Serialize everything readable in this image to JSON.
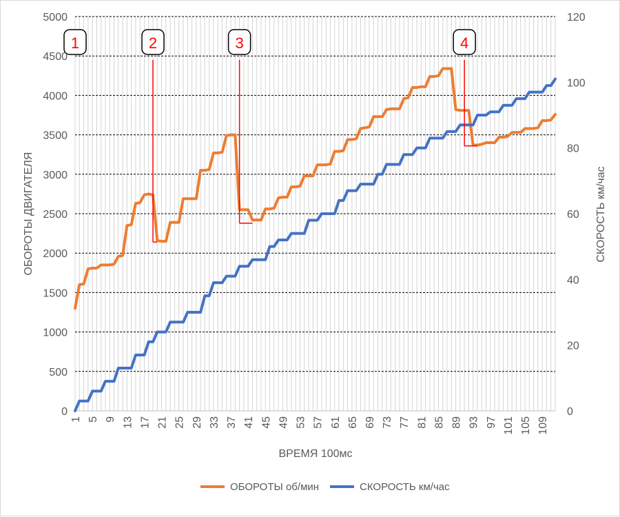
{
  "chart_data": {
    "type": "line",
    "xlabel": "ВРЕМЯ 100мс",
    "ylabel": "ОБОРОТЫ ДВИГАТЕЛЯ",
    "y2label": "СКОРОСТЬ км/час",
    "xlim": [
      1,
      112
    ],
    "ylim": [
      0,
      5000
    ],
    "y2lim": [
      0,
      120
    ],
    "x_ticks": [
      1,
      5,
      9,
      13,
      17,
      21,
      25,
      29,
      33,
      37,
      41,
      45,
      49,
      53,
      57,
      61,
      65,
      69,
      73,
      77,
      81,
      85,
      89,
      93,
      97,
      101,
      105,
      109
    ],
    "x_tick_labels": [
      "1",
      "5",
      "9",
      "13",
      "17",
      "21",
      "25",
      "29",
      "33",
      "37",
      "41",
      "45",
      "49",
      "53",
      "57",
      "61",
      "65",
      "69",
      "73",
      "77",
      "81",
      "85",
      "89",
      "93",
      "97",
      "101",
      "105",
      "109"
    ],
    "y_ticks": [
      0,
      500,
      1000,
      1500,
      2000,
      2500,
      3000,
      3500,
      4000,
      4500,
      5000
    ],
    "y_tick_labels": [
      "0",
      "500",
      "1000",
      "1500",
      "2000",
      "2500",
      "3000",
      "3500",
      "4000",
      "4500",
      "5000"
    ],
    "y2_ticks": [
      0,
      20,
      40,
      60,
      80,
      100,
      120
    ],
    "y2_tick_labels": [
      "0",
      "20",
      "40",
      "60",
      "80",
      "100",
      "120"
    ],
    "grid": true,
    "legend_position": "bottom",
    "series": [
      {
        "name": "ОБОРОТЫ об/мин",
        "axis": "left",
        "color": "#ed7d31",
        "x": [
          1,
          2,
          3,
          4,
          5,
          6,
          7,
          8,
          9,
          10,
          11,
          12,
          13,
          14,
          15,
          16,
          17,
          18,
          19,
          20,
          21,
          22,
          23,
          24,
          25,
          26,
          27,
          28,
          29,
          30,
          31,
          32,
          33,
          34,
          35,
          36,
          37,
          38,
          39,
          40,
          41,
          42,
          43,
          44,
          45,
          46,
          47,
          48,
          49,
          50,
          51,
          52,
          53,
          54,
          55,
          56,
          57,
          58,
          59,
          60,
          61,
          62,
          63,
          64,
          65,
          66,
          67,
          68,
          69,
          70,
          71,
          72,
          73,
          74,
          75,
          76,
          77,
          78,
          79,
          80,
          81,
          82,
          83,
          84,
          85,
          86,
          87,
          88,
          89,
          90,
          91,
          92,
          93,
          94,
          95,
          96,
          97,
          98,
          99,
          100,
          101,
          102,
          103,
          104,
          105,
          106,
          107,
          108,
          109,
          110,
          111,
          112
        ],
        "values": [
          1300,
          1600,
          1610,
          1800,
          1810,
          1810,
          1850,
          1850,
          1850,
          1860,
          1960,
          1970,
          2350,
          2360,
          2630,
          2640,
          2740,
          2750,
          2740,
          2160,
          2150,
          2150,
          2390,
          2390,
          2390,
          2690,
          2690,
          2690,
          2690,
          3050,
          3050,
          3060,
          3270,
          3270,
          3280,
          3490,
          3500,
          3500,
          2550,
          2550,
          2550,
          2420,
          2420,
          2420,
          2560,
          2560,
          2570,
          2700,
          2710,
          2710,
          2840,
          2840,
          2850,
          2980,
          2980,
          2980,
          3120,
          3120,
          3120,
          3130,
          3290,
          3290,
          3300,
          3440,
          3440,
          3450,
          3580,
          3590,
          3600,
          3730,
          3730,
          3730,
          3820,
          3830,
          3830,
          3830,
          3960,
          3970,
          4100,
          4100,
          4110,
          4110,
          4240,
          4240,
          4250,
          4340,
          4340,
          4340,
          3820,
          3810,
          3810,
          3810,
          3370,
          3370,
          3380,
          3400,
          3400,
          3400,
          3470,
          3470,
          3480,
          3530,
          3530,
          3530,
          3580,
          3580,
          3580,
          3590,
          3680,
          3680,
          3690,
          3760
        ]
      },
      {
        "name": "СКОРОСТЬ км/час",
        "axis": "right",
        "color": "#4472c4",
        "x": [
          1,
          2,
          3,
          4,
          5,
          6,
          7,
          8,
          9,
          10,
          11,
          12,
          13,
          14,
          15,
          16,
          17,
          18,
          19,
          20,
          21,
          22,
          23,
          24,
          25,
          26,
          27,
          28,
          29,
          30,
          31,
          32,
          33,
          34,
          35,
          36,
          37,
          38,
          39,
          40,
          41,
          42,
          43,
          44,
          45,
          46,
          47,
          48,
          49,
          50,
          51,
          52,
          53,
          54,
          55,
          56,
          57,
          58,
          59,
          60,
          61,
          62,
          63,
          64,
          65,
          66,
          67,
          68,
          69,
          70,
          71,
          72,
          73,
          74,
          75,
          76,
          77,
          78,
          79,
          80,
          81,
          82,
          83,
          84,
          85,
          86,
          87,
          88,
          89,
          90,
          91,
          92,
          93,
          94,
          95,
          96,
          97,
          98,
          99,
          100,
          101,
          102,
          103,
          104,
          105,
          106,
          107,
          108,
          109,
          110,
          111,
          112
        ],
        "values": [
          0,
          3,
          3,
          3,
          6,
          6,
          6,
          9,
          9,
          9,
          13,
          13,
          13,
          13,
          17,
          17,
          17,
          21,
          21,
          24,
          24,
          24,
          27,
          27,
          27,
          27,
          30,
          30,
          30,
          30,
          35,
          35,
          39,
          39,
          39,
          41,
          41,
          41,
          44,
          44,
          44,
          46,
          46,
          46,
          46,
          50,
          50,
          52,
          52,
          52,
          54,
          54,
          54,
          54,
          58,
          58,
          58,
          60,
          60,
          60,
          60,
          64,
          64,
          67,
          67,
          67,
          69,
          69,
          69,
          69,
          72,
          72,
          75,
          75,
          75,
          75,
          78,
          78,
          78,
          80,
          80,
          80,
          83,
          83,
          83,
          83,
          85,
          85,
          85,
          87,
          87,
          87,
          87,
          90,
          90,
          90,
          91,
          91,
          91,
          93,
          93,
          93,
          95,
          95,
          95,
          97,
          97,
          97,
          97,
          99,
          99,
          101
        ]
      }
    ],
    "annotations": [
      {
        "label": "1",
        "x": 1,
        "line_top": null,
        "line_bottom": null,
        "line_end_x": null
      },
      {
        "label": "2",
        "x": 19,
        "line_top": 4450,
        "line_bottom": 2140,
        "line_end_x": 20
      },
      {
        "label": "3",
        "x": 39,
        "line_top": 4450,
        "line_bottom": 2380,
        "line_end_x": 42
      },
      {
        "label": "4",
        "x": 91,
        "line_top": 4450,
        "line_bottom": 3360,
        "line_end_x": 94
      }
    ]
  }
}
